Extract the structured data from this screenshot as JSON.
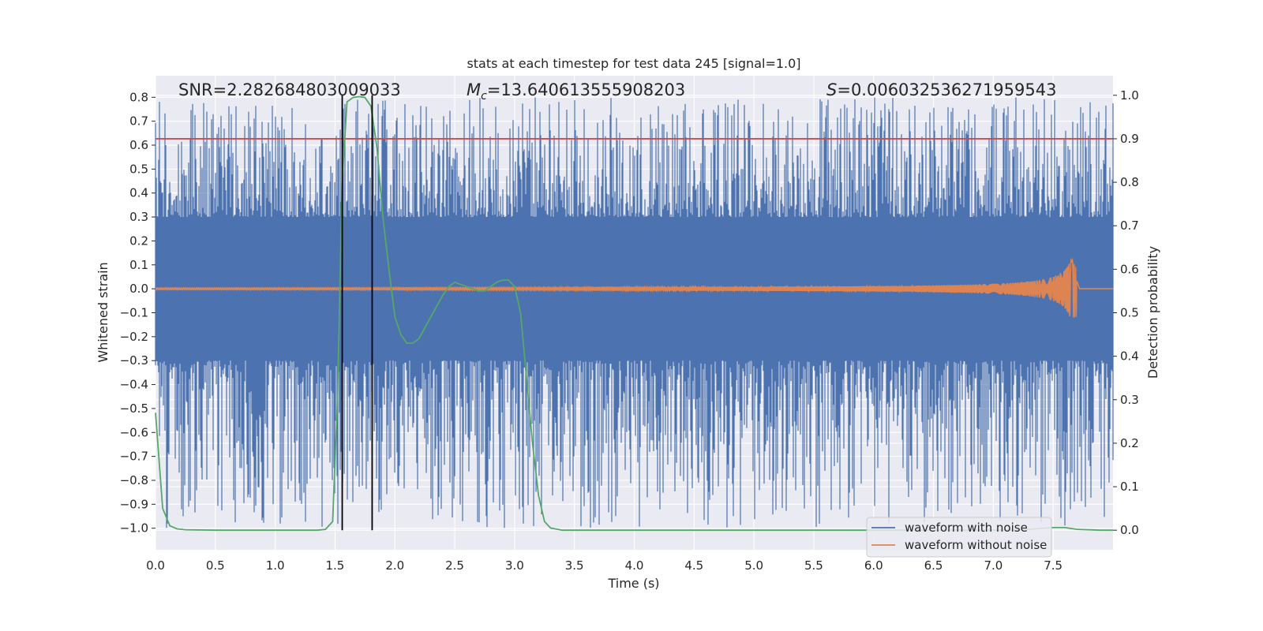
{
  "chart_data": {
    "type": "line",
    "title": "stats at each timestep for test data 245 [signal=1.0]",
    "xlabel": "Time (s)",
    "ylabel": "Whitened strain",
    "ylabel_right": "Detection probability",
    "xlim": [
      0.0,
      8.0
    ],
    "ylim": [
      -1.09,
      0.89
    ],
    "ylim_right": [
      -0.045,
      1.045
    ],
    "x_ticks": [
      "0.0",
      "0.5",
      "1.0",
      "1.5",
      "2.0",
      "2.5",
      "3.0",
      "3.5",
      "4.0",
      "4.5",
      "5.0",
      "5.5",
      "6.0",
      "6.5",
      "7.0",
      "7.5"
    ],
    "y_ticks": [
      "0.8",
      "0.7",
      "0.6",
      "0.5",
      "0.4",
      "0.3",
      "0.2",
      "0.1",
      "0.0",
      "−0.1",
      "−0.2",
      "−0.3",
      "−0.4",
      "−0.5",
      "−0.6",
      "−0.7",
      "−0.8",
      "−0.9",
      "−1.0"
    ],
    "y_ticks_right": [
      "1.0",
      "0.9",
      "0.8",
      "0.7",
      "0.6",
      "0.5",
      "0.4",
      "0.3",
      "0.2",
      "0.1",
      "0.0"
    ],
    "annotations": {
      "snr": "SNR=2.282684803009033",
      "mc_symbol": "M",
      "mc_sub": "c",
      "mc_value": "=13.640613555908203",
      "s_symbol": "S",
      "s_value": "=0.006032536271959543"
    },
    "threshold_right": 0.9,
    "vertical_lines": [
      1.56,
      1.81
    ],
    "noise_envelope": {
      "dense_band": [
        -0.3,
        0.3
      ],
      "spike_max_range": [
        0.35,
        0.8
      ],
      "spike_min_range": [
        -1.0,
        -0.35
      ]
    },
    "chirp": {
      "start": 0.0,
      "merger": 7.7,
      "amplitude_start": 0.004,
      "amplitude_peak": 0.12
    },
    "series": [
      {
        "name": "waveform with noise",
        "color": "#4c72b0",
        "axis": "left"
      },
      {
        "name": "waveform without noise",
        "color": "#dd8452",
        "axis": "left"
      },
      {
        "name": "detection probability",
        "color": "#55a868",
        "axis": "right",
        "x": [
          0.0,
          0.06,
          0.12,
          0.18,
          0.25,
          0.5,
          0.8,
          1.0,
          1.2,
          1.35,
          1.42,
          1.48,
          1.52,
          1.56,
          1.6,
          1.65,
          1.7,
          1.75,
          1.8,
          1.85,
          1.9,
          1.95,
          2.0,
          2.05,
          2.1,
          2.15,
          2.2,
          2.3,
          2.4,
          2.45,
          2.5,
          2.6,
          2.7,
          2.75,
          2.8,
          2.85,
          2.9,
          2.95,
          3.0,
          3.05,
          3.1,
          3.15,
          3.2,
          3.25,
          3.3,
          3.4,
          3.5,
          4.0,
          5.0,
          6.0,
          7.0,
          7.2,
          7.35,
          7.5,
          7.6,
          7.7,
          7.9,
          8.0
        ],
        "y": [
          0.27,
          0.05,
          0.01,
          0.003,
          0.001,
          0.0,
          0.0,
          0.0,
          0.0,
          0.0,
          0.002,
          0.02,
          0.3,
          0.8,
          0.985,
          0.995,
          0.997,
          0.995,
          0.975,
          0.88,
          0.72,
          0.6,
          0.49,
          0.45,
          0.43,
          0.43,
          0.44,
          0.49,
          0.54,
          0.56,
          0.57,
          0.56,
          0.55,
          0.55,
          0.56,
          0.57,
          0.575,
          0.575,
          0.56,
          0.5,
          0.35,
          0.2,
          0.08,
          0.02,
          0.005,
          0.0,
          0.0,
          0.0,
          0.0,
          0.0,
          0.0,
          0.0,
          0.003,
          0.006,
          0.006,
          0.002,
          0.0,
          0.0
        ]
      }
    ],
    "legend": {
      "location": "lower-right",
      "items": [
        "waveform with noise",
        "waveform without noise"
      ]
    }
  }
}
